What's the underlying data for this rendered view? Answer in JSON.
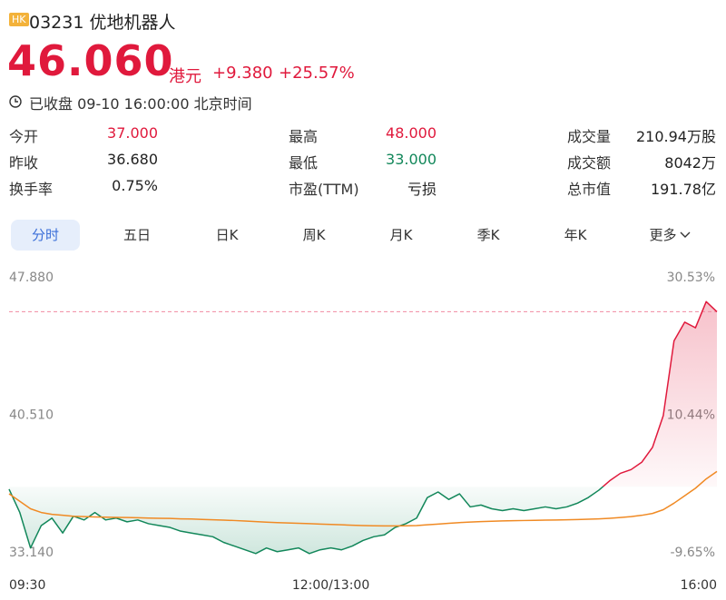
{
  "header": {
    "market": "HK",
    "code_name": "03231 优地机器人",
    "price": "46.060",
    "currency": "港元",
    "change": "+9.380",
    "change_pct": "+25.57%",
    "status": "已收盘 09-10 16:00:00 北京时间"
  },
  "stats": [
    [
      {
        "label": "今开",
        "value": "37.000"
      },
      {
        "label": "最高",
        "value": "48.000"
      },
      {
        "label": "成交量",
        "value": "210.94万股"
      }
    ],
    [
      {
        "label": "昨收",
        "value": "36.680"
      },
      {
        "label": "最低",
        "value": "33.000"
      },
      {
        "label": "成交额",
        "value": "8042万"
      }
    ],
    [
      {
        "label": "换手率",
        "value": "0.75%"
      },
      {
        "label": "市盈(TTM)",
        "value": "亏损"
      },
      {
        "label": "总市值",
        "value": "191.78亿"
      }
    ]
  ],
  "tabs": [
    "分时",
    "五日",
    "日K",
    "周K",
    "月K",
    "季K",
    "年K",
    "更多"
  ],
  "chart_data": {
    "type": "line",
    "x": [
      "09:30",
      "09:35",
      "09:40",
      "09:45",
      "09:50",
      "09:55",
      "10:00",
      "10:05",
      "10:10",
      "10:15",
      "10:20",
      "10:25",
      "10:30",
      "10:35",
      "10:40",
      "10:45",
      "10:50",
      "10:55",
      "11:00",
      "11:05",
      "11:10",
      "11:15",
      "11:20",
      "11:25",
      "11:30",
      "11:35",
      "11:40",
      "11:45",
      "11:50",
      "11:55",
      "12:00",
      "13:05",
      "13:10",
      "13:15",
      "13:20",
      "13:25",
      "13:30",
      "13:35",
      "13:40",
      "13:45",
      "13:50",
      "13:55",
      "14:00",
      "14:05",
      "14:10",
      "14:15",
      "14:20",
      "14:25",
      "14:30",
      "14:35",
      "14:40",
      "14:45",
      "14:50",
      "14:55",
      "15:00",
      "15:05",
      "15:10",
      "15:15",
      "15:20",
      "15:25",
      "15:30",
      "15:35",
      "15:40",
      "15:45",
      "15:50",
      "15:55",
      "16:00"
    ],
    "series": [
      {
        "color": "#e0193c",
        "down_color": "#12875a",
        "values": [
          36.55,
          35.3,
          33.4,
          34.6,
          35.0,
          34.2,
          35.1,
          34.9,
          35.3,
          34.9,
          35.0,
          34.8,
          34.9,
          34.7,
          34.6,
          34.5,
          34.3,
          34.2,
          34.1,
          34.0,
          33.7,
          33.5,
          33.3,
          33.1,
          33.4,
          33.2,
          33.3,
          33.4,
          33.1,
          33.3,
          33.4,
          33.3,
          33.5,
          33.8,
          34.0,
          34.1,
          34.5,
          34.7,
          35.0,
          36.1,
          36.4,
          36.0,
          36.3,
          35.6,
          35.7,
          35.5,
          35.4,
          35.5,
          35.4,
          35.5,
          35.6,
          35.5,
          35.6,
          35.8,
          36.1,
          36.5,
          37.0,
          37.4,
          37.6,
          38.0,
          38.8,
          40.5,
          44.5,
          45.5,
          45.2,
          46.6,
          46.06
        ]
      },
      {
        "color": "#f08a24",
        "values": [
          36.3,
          35.9,
          35.5,
          35.3,
          35.2,
          35.15,
          35.1,
          35.08,
          35.06,
          35.05,
          35.04,
          35.03,
          35.02,
          35.0,
          34.99,
          34.98,
          34.96,
          34.95,
          34.93,
          34.91,
          34.89,
          34.87,
          34.84,
          34.81,
          34.78,
          34.76,
          34.74,
          34.72,
          34.7,
          34.68,
          34.66,
          34.64,
          34.62,
          34.6,
          34.59,
          34.58,
          34.58,
          34.59,
          34.6,
          34.64,
          34.68,
          34.72,
          34.76,
          34.79,
          34.81,
          34.83,
          34.85,
          34.86,
          34.87,
          34.88,
          34.89,
          34.9,
          34.91,
          34.92,
          34.94,
          34.96,
          34.99,
          35.03,
          35.08,
          35.15,
          35.25,
          35.45,
          35.8,
          36.2,
          36.6,
          37.1,
          37.5
        ]
      }
    ],
    "ylim": [
      33.14,
      47.88
    ],
    "yticks": [
      {
        "value": 47.88,
        "label": "47.880"
      },
      {
        "value": 40.51,
        "label": "40.510"
      },
      {
        "value": 33.14,
        "label": "33.140"
      }
    ],
    "y2lim": [
      -9.65,
      30.53
    ],
    "y2ticks": [
      {
        "value": 30.53,
        "label": "30.53%"
      },
      {
        "value": 10.44,
        "label": "10.44%"
      },
      {
        "value": -9.65,
        "label": "-9.65%"
      }
    ],
    "xticks": [
      "09:30",
      "12:00/13:00",
      "16:00"
    ],
    "ref_line_color": "#f08aa0"
  }
}
